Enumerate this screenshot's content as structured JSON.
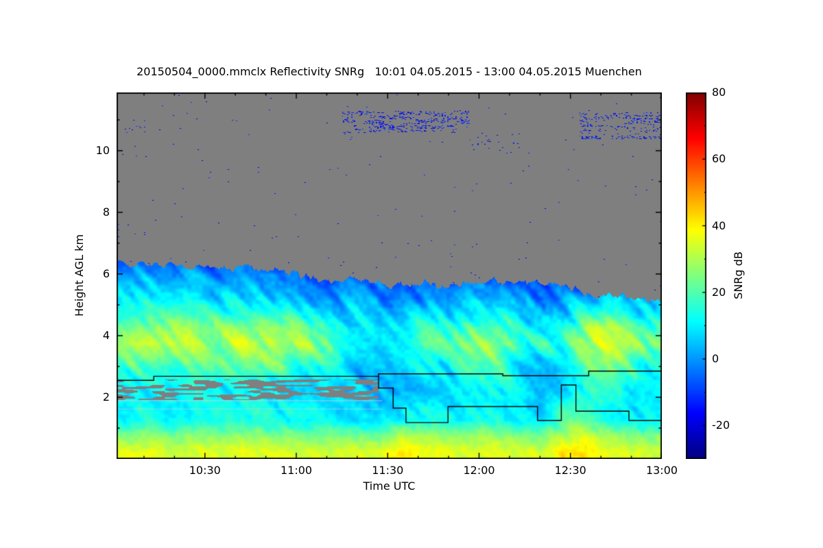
{
  "chart_data": {
    "type": "heatmap",
    "title": "20150504_0000.mmclx Reflectivity SNRg   10:01 04.05.2015 - 13:00 04.05.2015 Muenchen",
    "instrument_file": "20150504_0000.mmclx",
    "quantity": "Reflectivity SNRg",
    "time_start": "10:01 04.05.2015",
    "time_end": "13:00 04.05.2015",
    "location": "Muenchen",
    "xlabel": "Time UTC",
    "ylabel": "Height AGL km",
    "colorbar_label": "SNRg dB",
    "x_range_hours": [
      10.0167,
      13.0
    ],
    "y_range_km": [
      0,
      11.89
    ],
    "value_range_db": [
      -30,
      80
    ],
    "colormap": "jet",
    "no_data_color": "#7f7f7f",
    "frame_color": "#000000",
    "background_color": "#ffffff",
    "x_ticks": [
      {
        "label": "10:30",
        "hour": 10.5
      },
      {
        "label": "11:00",
        "hour": 11.0
      },
      {
        "label": "11:30",
        "hour": 11.5
      },
      {
        "label": "12:00",
        "hour": 12.0
      },
      {
        "label": "12:30",
        "hour": 12.5
      },
      {
        "label": "13:00",
        "hour": 13.0
      }
    ],
    "y_ticks": [
      {
        "label": "2",
        "km": 2
      },
      {
        "label": "4",
        "km": 4
      },
      {
        "label": "6",
        "km": 6
      },
      {
        "label": "8",
        "km": 8
      },
      {
        "label": "10",
        "km": 10
      }
    ],
    "colorbar_ticks": [
      {
        "label": "80",
        "value": 80
      },
      {
        "label": "60",
        "value": 60
      },
      {
        "label": "40",
        "value": 40
      },
      {
        "label": "20",
        "value": 20
      },
      {
        "label": "0",
        "value": 0
      },
      {
        "label": "-20",
        "value": -20
      }
    ],
    "grid": {
      "time_hours": [
        10.083,
        10.208,
        10.333,
        10.458,
        10.583,
        10.708,
        10.833,
        10.958,
        11.083,
        11.208,
        11.333,
        11.458,
        11.583,
        11.708,
        11.833,
        11.958,
        12.083,
        12.208,
        12.333,
        12.458,
        12.583,
        12.708,
        12.833,
        12.958
      ],
      "height_km": [
        6.25,
        5.75,
        5.25,
        4.75,
        4.25,
        3.75,
        3.25,
        2.75,
        2.25,
        1.75,
        1.25,
        0.75,
        0.25
      ],
      "snr_db": [
        [
          -4,
          -3,
          -5,
          -4,
          -6,
          -5,
          -6,
          -7,
          -8,
          -8,
          -7,
          -8,
          -9,
          -8,
          -9,
          -9,
          -8,
          -9,
          -10,
          -10,
          -10,
          -11,
          -11,
          -12
        ],
        [
          2,
          3,
          1,
          2,
          0,
          1,
          -1,
          0,
          -3,
          -4,
          -2,
          -5,
          -6,
          -4,
          -5,
          -3,
          -2,
          -5,
          -6,
          -7,
          -6,
          -8,
          -8,
          -9
        ],
        [
          8,
          9,
          7,
          8,
          6,
          7,
          5,
          6,
          2,
          0,
          3,
          -2,
          -3,
          0,
          -1,
          2,
          4,
          0,
          -2,
          -3,
          6,
          8,
          5,
          3
        ],
        [
          16,
          18,
          15,
          17,
          14,
          16,
          13,
          15,
          10,
          6,
          8,
          2,
          4,
          8,
          6,
          12,
          14,
          8,
          4,
          6,
          12,
          16,
          10,
          8
        ],
        [
          26,
          28,
          25,
          27,
          24,
          28,
          26,
          25,
          20,
          14,
          12,
          8,
          10,
          16,
          14,
          22,
          24,
          16,
          10,
          14,
          26,
          30,
          22,
          18
        ],
        [
          30,
          32,
          29,
          31,
          28,
          32,
          30,
          28,
          26,
          20,
          14,
          10,
          12,
          20,
          18,
          26,
          28,
          20,
          14,
          18,
          30,
          33,
          26,
          22
        ],
        [
          24,
          26,
          23,
          25,
          22,
          26,
          24,
          22,
          20,
          16,
          10,
          6,
          8,
          14,
          12,
          20,
          22,
          14,
          8,
          12,
          24,
          28,
          20,
          16
        ],
        [
          16,
          18,
          15,
          17,
          14,
          18,
          16,
          14,
          12,
          10,
          6,
          4,
          5,
          8,
          8,
          14,
          16,
          10,
          5,
          8,
          18,
          22,
          14,
          12
        ],
        [
          10,
          12,
          9,
          11,
          8,
          12,
          10,
          9,
          8,
          6,
          4,
          3,
          4,
          6,
          6,
          10,
          12,
          8,
          4,
          6,
          14,
          16,
          10,
          9
        ],
        [
          12,
          13,
          11,
          12,
          10,
          13,
          11,
          10,
          9,
          8,
          6,
          5,
          8,
          9,
          8,
          11,
          12,
          9,
          6,
          16,
          18,
          14,
          10,
          9
        ],
        [
          14,
          15,
          13,
          14,
          12,
          15,
          13,
          12,
          11,
          10,
          8,
          8,
          12,
          12,
          11,
          13,
          14,
          11,
          9,
          20,
          22,
          16,
          12,
          11
        ],
        [
          27,
          28,
          26,
          27,
          25,
          28,
          27,
          26,
          25,
          24,
          22,
          24,
          30,
          28,
          26,
          27,
          28,
          26,
          24,
          30,
          34,
          30,
          26,
          25
        ],
        [
          35,
          36,
          34,
          35,
          34,
          36,
          35,
          34,
          34,
          33,
          34,
          36,
          40,
          38,
          35,
          35,
          36,
          35,
          34,
          41,
          42,
          37,
          35,
          34
        ]
      ]
    },
    "echo_top_km": {
      "time_hours": [
        10.083,
        10.208,
        10.333,
        10.458,
        10.583,
        10.708,
        10.833,
        10.958,
        11.083,
        11.208,
        11.333,
        11.458,
        11.583,
        11.708,
        11.833,
        11.958,
        12.083,
        12.208,
        12.333,
        12.458,
        12.583,
        12.708,
        12.833,
        12.958
      ],
      "values": [
        6.35,
        6.3,
        6.3,
        6.25,
        6.2,
        6.25,
        6.15,
        6.05,
        5.95,
        5.8,
        5.85,
        5.75,
        5.6,
        5.7,
        5.6,
        5.65,
        5.8,
        5.65,
        5.75,
        5.6,
        5.35,
        5.3,
        5.25,
        5.05
      ]
    },
    "boundary_lines": [
      {
        "name": "upper-layer-line",
        "points": [
          [
            10.017,
            2.55
          ],
          [
            10.22,
            2.55
          ],
          [
            10.22,
            2.68
          ],
          [
            11.45,
            2.68
          ],
          [
            11.45,
            2.76
          ],
          [
            12.13,
            2.76
          ],
          [
            12.13,
            2.7
          ],
          [
            12.6,
            2.7
          ],
          [
            12.6,
            2.85
          ],
          [
            13.0,
            2.85
          ]
        ]
      },
      {
        "name": "lower-layer-line",
        "points": [
          [
            11.45,
            2.68
          ],
          [
            11.45,
            2.3
          ],
          [
            11.53,
            2.3
          ],
          [
            11.53,
            1.65
          ],
          [
            11.6,
            1.65
          ],
          [
            11.6,
            1.18
          ],
          [
            11.83,
            1.18
          ],
          [
            11.83,
            1.7
          ],
          [
            12.32,
            1.7
          ],
          [
            12.32,
            1.25
          ],
          [
            12.45,
            1.25
          ],
          [
            12.45,
            2.4
          ],
          [
            12.53,
            2.4
          ],
          [
            12.53,
            1.55
          ],
          [
            12.82,
            1.55
          ],
          [
            12.82,
            1.25
          ],
          [
            13.0,
            1.25
          ]
        ]
      }
    ],
    "speckle_bands": [
      {
        "t0": 11.25,
        "t1": 11.95,
        "h0": 10.6,
        "h1": 11.3,
        "density": 0.09
      },
      {
        "t0": 12.55,
        "t1": 13.0,
        "h0": 10.4,
        "h1": 11.25,
        "density": 0.07
      },
      {
        "t0": 11.95,
        "t1": 12.25,
        "h0": 9.9,
        "h1": 10.6,
        "density": 0.015
      },
      {
        "t0": 10.05,
        "t1": 10.2,
        "h0": 10.6,
        "h1": 11.0,
        "density": 0.01
      }
    ],
    "speckle_base_density": 0.0012,
    "gray_gap_band": {
      "t0": 10.017,
      "t1": 11.45,
      "h0": 1.93,
      "h1": 2.58
    },
    "artifact_lines": [
      {
        "t0": 10.017,
        "t1": 11.47,
        "km": 1.9,
        "color": "rgba(205,205,225,0.85)"
      },
      {
        "t0": 10.017,
        "t1": 11.47,
        "km": 1.63,
        "color": "rgba(205,205,225,0.6)"
      }
    ]
  }
}
